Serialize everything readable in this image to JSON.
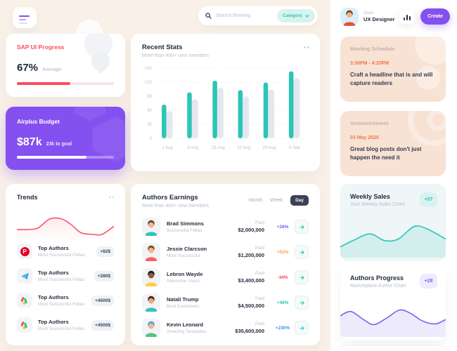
{
  "header": {
    "search": {
      "placeholder": "Search Booking",
      "category": {
        "label": "Category"
      }
    },
    "user": {
      "name": "Sean",
      "role": "UX Designer"
    },
    "create_label": "Create"
  },
  "sap_progress": {
    "title": "SAP UI Progress",
    "value": "67%",
    "value_label": "Average",
    "progress_percent": 55,
    "accent": "#fb4d5c"
  },
  "airplus_budget": {
    "title": "Airplus Budget",
    "value": "$87k",
    "goal": "23k to goal",
    "progress_percent": 72,
    "bg": "#8450f0"
  },
  "trends": {
    "title": "Trends",
    "chart_data": {
      "type": "line",
      "color": "#f8566a",
      "points": [
        [
          0,
          35
        ],
        [
          12,
          35
        ],
        [
          22,
          40
        ],
        [
          34,
          68
        ],
        [
          46,
          68
        ],
        [
          56,
          50
        ],
        [
          66,
          25
        ],
        [
          78,
          20
        ],
        [
          88,
          20
        ],
        [
          100,
          45
        ]
      ]
    },
    "items": [
      {
        "icon": "pinterest",
        "title": "Top Authors",
        "subtitle": "Most Successful Fellas",
        "badge": "+82$"
      },
      {
        "icon": "telegram",
        "title": "Top Authors",
        "subtitle": "Most Successful Fellas",
        "badge": "+280$"
      },
      {
        "icon": "colorful-mark",
        "title": "Top Authors",
        "subtitle": "Most Successful Fellas",
        "badge": "+4500$"
      },
      {
        "icon": "colorful-mark",
        "title": "Top Authors",
        "subtitle": "Most Successful Fellas",
        "badge": "+4500$"
      }
    ]
  },
  "recent_stats": {
    "title": "Recent Stats",
    "subtitle": "More than 400+ new members",
    "chart_data": {
      "type": "bar",
      "categories": [
        "1 Aug",
        "8 Aug",
        "15 Aug",
        "22 Aug",
        "29 Aug",
        "5 Sep"
      ],
      "series": [
        {
          "name": "current",
          "color": "#2cc5b6",
          "values": [
            72,
            98,
            123,
            103,
            119,
            143
          ]
        },
        {
          "name": "previous",
          "color": "#e4e8ee",
          "values": [
            58,
            83,
            108,
            89,
            104,
            128
          ]
        }
      ],
      "ylim": [
        0,
        150
      ],
      "yticks": [
        0,
        30,
        60,
        90,
        120,
        150
      ],
      "grid": "dotted-horizontal",
      "legend": "none"
    }
  },
  "authors_earnings": {
    "title": "Authors Earnings",
    "subtitle": "More than 400+ new members",
    "tabs": [
      {
        "label": "Month",
        "active": false
      },
      {
        "label": "Week",
        "active": false
      },
      {
        "label": "Day",
        "active": true
      }
    ],
    "rows": [
      {
        "name": "Brad Simmons",
        "subtitle": "Successful Fellas",
        "paid_label": "Paid",
        "amount": "$2,000,000",
        "percent": "+28%",
        "percent_color": "#7b5cf5",
        "avatar": {
          "skin": "#f2b490",
          "hair": "#6b4423",
          "shirt": "#2cc5b6"
        }
      },
      {
        "name": "Jessie Clarcson",
        "subtitle": "Most Successful",
        "paid_label": "Paid",
        "amount": "$1,200,000",
        "percent": "+52%",
        "percent_color": "#f9a13a",
        "avatar": {
          "skin": "#f2b490",
          "hair": "#7a4b2a",
          "shirt": "#ff5c5c"
        }
      },
      {
        "name": "Lebron Wayde",
        "subtitle": "Awesome Users",
        "paid_label": "Paid",
        "amount": "$3,400,000",
        "percent": "-34%",
        "percent_color": "#f9465a",
        "avatar": {
          "skin": "#8d5a3b",
          "hair": "#26201c",
          "shirt": "#ffcf3f"
        }
      },
      {
        "name": "Natali Trump",
        "subtitle": "Best Customers",
        "paid_label": "Paid",
        "amount": "$4,500,000",
        "percent": "+48%",
        "percent_color": "#2cc5b6",
        "avatar": {
          "skin": "#e8a87c",
          "hair": "#3b2a22",
          "shirt": "#2cc5b6"
        }
      },
      {
        "name": "Kevin Leonard",
        "subtitle": "Amazing Templates",
        "paid_label": "Paid",
        "amount": "$35,600,000",
        "percent": "+230%",
        "percent_color": "#3e8bfd",
        "avatar": {
          "skin": "#f2b490",
          "hair": "#4aa3df",
          "shirt": "#58c27d"
        }
      }
    ]
  },
  "meeting_schedule": {
    "title": "Meeting Schedule",
    "time": "3:30PM - 4:20PM",
    "text": "Craft a headline that is  and will capture readers"
  },
  "announcement": {
    "title": "Announcement",
    "date": "03 May 2020",
    "text": "Great blog posts don't just happen the need it"
  },
  "weekly_sales": {
    "title": "Weekly Sales",
    "subtitle": "Your Weekly Sales Chart",
    "badge": "+57",
    "chart_data": {
      "type": "area",
      "color": "#2cc5b6",
      "fill": "#d2eeed",
      "points": [
        [
          0,
          22
        ],
        [
          12,
          38
        ],
        [
          28,
          55
        ],
        [
          42,
          38
        ],
        [
          55,
          42
        ],
        [
          70,
          74
        ],
        [
          82,
          68
        ],
        [
          100,
          42
        ]
      ]
    }
  },
  "authors_progress": {
    "title": "Authors Progress",
    "subtitle": "Marketplace Author Chart",
    "badge": "+28",
    "chart_data": {
      "type": "area",
      "color": "#7468ee",
      "fill": "#edeafc",
      "points": [
        [
          0,
          52
        ],
        [
          10,
          64
        ],
        [
          22,
          42
        ],
        [
          32,
          28
        ],
        [
          45,
          48
        ],
        [
          56,
          68
        ],
        [
          66,
          60
        ],
        [
          78,
          38
        ],
        [
          90,
          30
        ],
        [
          100,
          42
        ]
      ]
    }
  }
}
